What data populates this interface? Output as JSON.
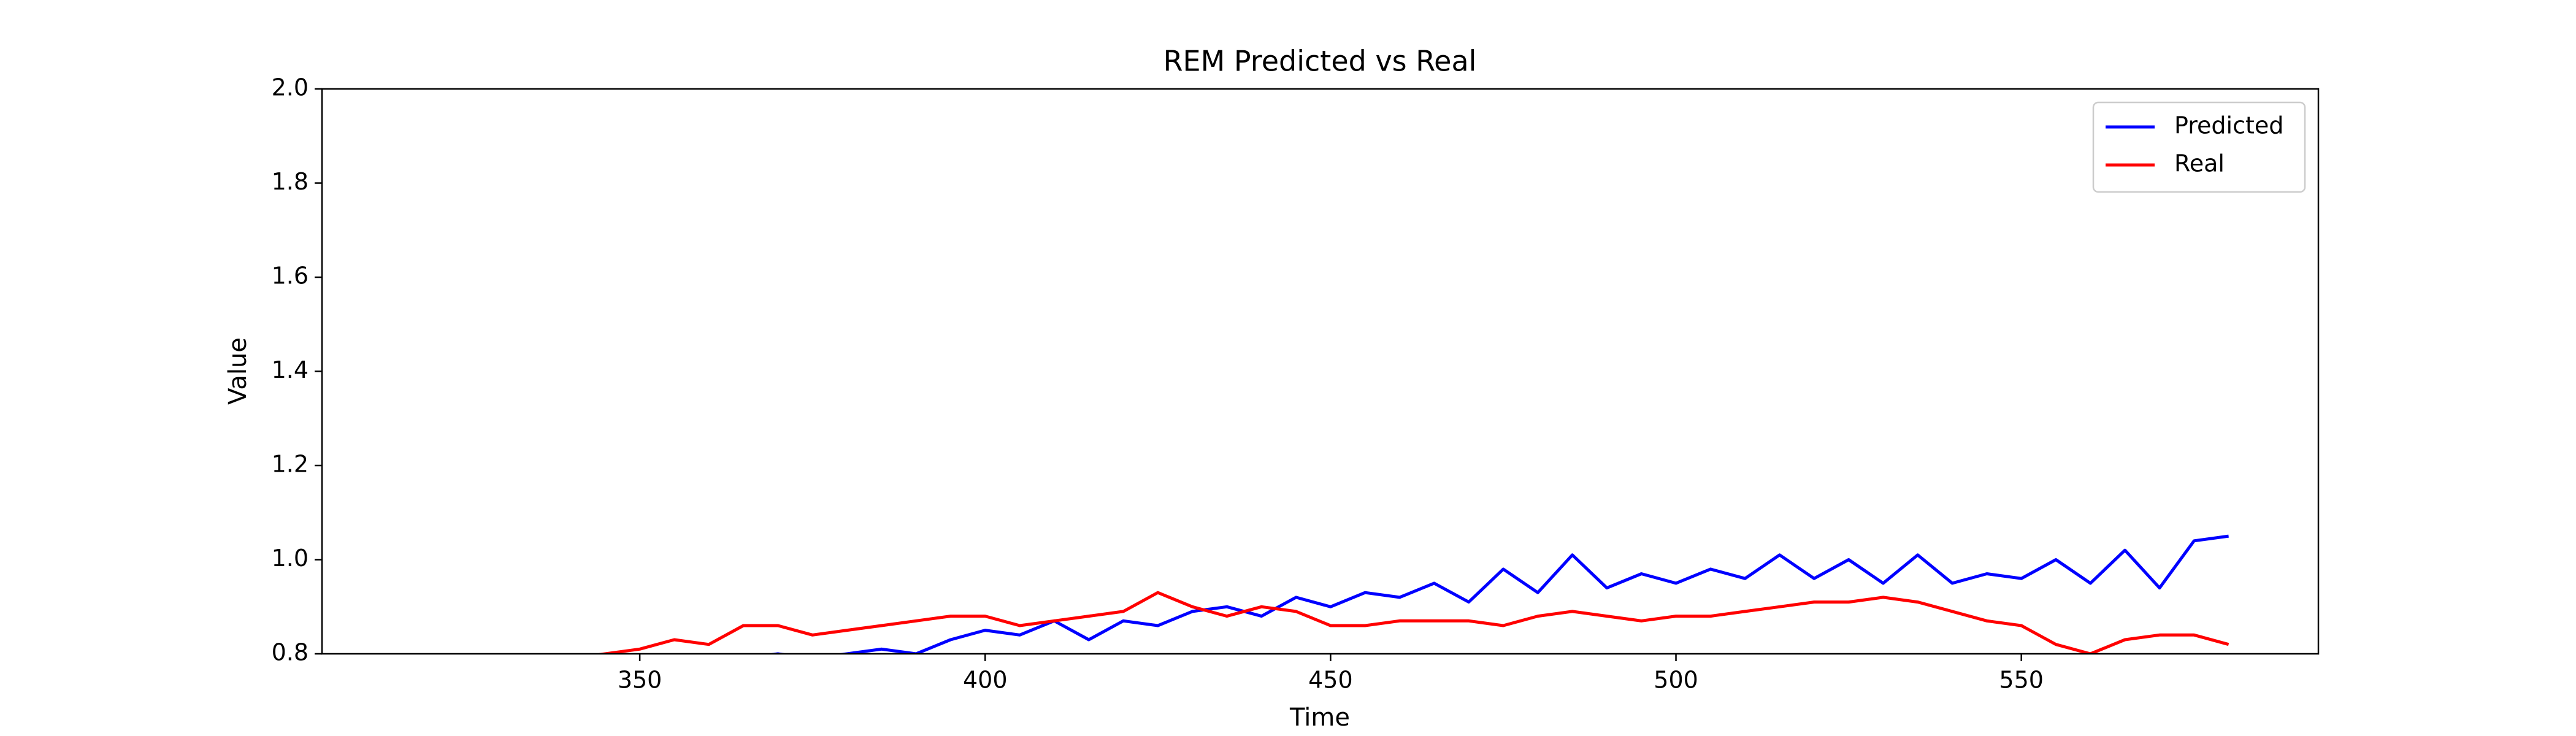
{
  "chart_data": {
    "type": "line",
    "title": "REM Predicted vs Real",
    "x_label": "Time",
    "y_label": "Value",
    "x": [
      340,
      345,
      350,
      355,
      360,
      365,
      370,
      375,
      380,
      385,
      390,
      395,
      400,
      405,
      410,
      415,
      420,
      425,
      430,
      435,
      440,
      445,
      450,
      455,
      460,
      465,
      470,
      475,
      480,
      485,
      490,
      495,
      500,
      505,
      510,
      515,
      520,
      525,
      530,
      535,
      540,
      545,
      550,
      555,
      560,
      565,
      570,
      575,
      580
    ],
    "series": [
      {
        "name": "Predicted",
        "color": "#0000ff",
        "values": [
          0.75,
          0.76,
          0.77,
          0.77,
          0.78,
          0.79,
          0.8,
          0.79,
          0.8,
          0.81,
          0.8,
          0.83,
          0.85,
          0.84,
          0.87,
          0.83,
          0.87,
          0.86,
          0.89,
          0.9,
          0.88,
          0.92,
          0.9,
          0.93,
          0.92,
          0.95,
          0.91,
          0.98,
          0.93,
          1.01,
          0.94,
          0.97,
          0.95,
          0.98,
          0.96,
          1.01,
          0.96,
          1.0,
          0.95,
          1.01,
          0.95,
          0.97,
          0.96,
          1.0,
          0.95,
          1.02,
          0.94,
          1.04,
          1.05
        ]
      },
      {
        "name": "Real",
        "color": "#ff0000",
        "values": [
          0.79,
          0.8,
          0.81,
          0.83,
          0.82,
          0.86,
          0.86,
          0.84,
          0.85,
          0.86,
          0.87,
          0.88,
          0.88,
          0.86,
          0.87,
          0.88,
          0.89,
          0.93,
          0.9,
          0.88,
          0.9,
          0.89,
          0.86,
          0.86,
          0.87,
          0.87,
          0.87,
          0.86,
          0.88,
          0.89,
          0.88,
          0.87,
          0.88,
          0.88,
          0.89,
          0.9,
          0.91,
          0.91,
          0.92,
          0.91,
          0.89,
          0.87,
          0.86,
          0.82,
          0.8,
          0.83,
          0.84,
          0.84,
          0.82
        ]
      }
    ],
    "xlim": [
      304,
      593
    ],
    "ylim": [
      0.8,
      2.0
    ],
    "xticks": [
      350,
      400,
      450,
      500,
      550
    ],
    "yticks": [
      0.8,
      {
        "value": 1,
        "label": "1.0"
      },
      1.2,
      1.4,
      1.6,
      1.8,
      {
        "value": 2,
        "label": "2.0"
      }
    ],
    "legend": "upper right",
    "grid": false
  }
}
